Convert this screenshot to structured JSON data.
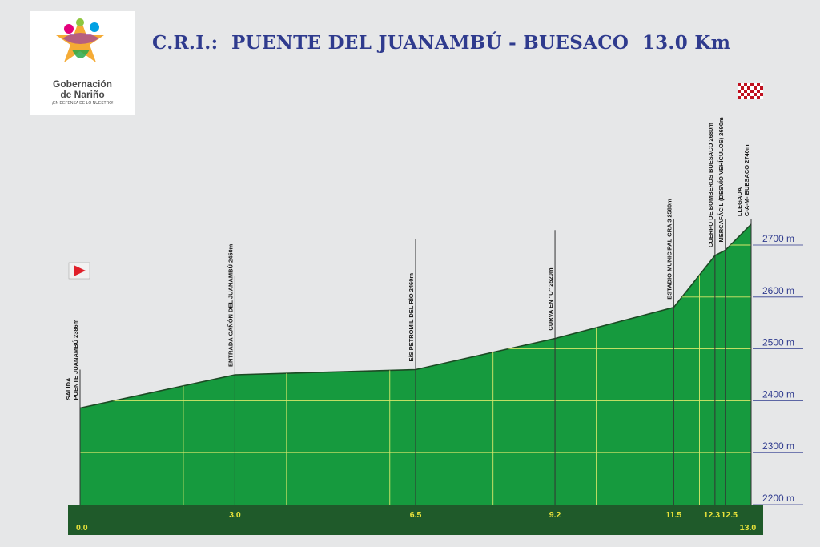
{
  "logo": {
    "line1": "Gobernación",
    "line2": "de Nariño",
    "tagline": "¡EN DEFENSA DE LO NUESTRO!"
  },
  "title": "C.R.I.:  PUENTE DEL JUANAMBÚ - BUESACO  13.0 Km",
  "colors": {
    "fill": "#169a3e",
    "profile_line": "#1c4a24",
    "x_band": "#1f5a2a",
    "grid": "#d9e86a",
    "y_axis_text": "#2f3b8e",
    "marker_line": "#333333",
    "start_flag": "#e0202a"
  },
  "chart_data": {
    "type": "area",
    "title": "C.R.I.:  PUENTE DEL JUANAMBÚ - BUESACO  13.0 Km",
    "xlabel": "",
    "ylabel": "",
    "ylim": [
      2200,
      2750
    ],
    "xlim": [
      0,
      13.0
    ],
    "yticks": [
      2200,
      2300,
      2400,
      2500,
      2600,
      2700
    ],
    "ytick_labels": [
      "2200 m",
      "2300 m",
      "2400 m",
      "2500 m",
      "2600 m",
      "2700 m"
    ],
    "xtick_labels": [
      "0.0",
      "3.0",
      "6.5",
      "9.2",
      "11.5",
      "12.3",
      "12.5",
      "13.0"
    ],
    "xticks": [
      0.0,
      3.0,
      6.5,
      9.2,
      11.5,
      12.3,
      12.5,
      13.0
    ],
    "profile": [
      {
        "x": 0.0,
        "y": 2386
      },
      {
        "x": 3.0,
        "y": 2450
      },
      {
        "x": 6.5,
        "y": 2460
      },
      {
        "x": 9.2,
        "y": 2520
      },
      {
        "x": 11.5,
        "y": 2580
      },
      {
        "x": 12.3,
        "y": 2680
      },
      {
        "x": 12.5,
        "y": 2690
      },
      {
        "x": 13.0,
        "y": 2740
      }
    ],
    "grid_x": [
      2.0,
      4.0,
      6.0,
      8.0,
      10.0,
      12.0
    ],
    "grid": true,
    "markers": [
      {
        "x": 0.0,
        "lines": [
          "SALIDA",
          "PUENTE JUANAMBÚ  2386m"
        ],
        "top_elev": 2460
      },
      {
        "x": 3.0,
        "lines": [
          "ENTRADA CAÑÓN DEL JUANAMBÚ  2450m"
        ],
        "top_elev": 2640
      },
      {
        "x": 6.5,
        "lines": [
          "E/S PETROMIL DEL RÍO  2460m"
        ],
        "top_elev": 2712
      },
      {
        "x": 9.2,
        "lines": [
          "CURVA EN \"U\"  2520m"
        ],
        "top_elev": 2729
      },
      {
        "x": 11.5,
        "lines": [
          "ESTADIO MUNICIPAL CRA 3  2580m"
        ],
        "top_elev": 2750
      },
      {
        "x": 12.3,
        "lines": [
          "CUERPO DE BOMBEROS BUESACO  2680m"
        ],
        "top_elev": 2750
      },
      {
        "x": 12.5,
        "lines": [
          "MERCAFÁCIL (DESVÍO VEHÍCULOS)  2690m"
        ],
        "top_elev": 2750
      },
      {
        "x": 13.0,
        "lines": [
          "LLEGADA",
          "C-A-M- BUESACO  2740m"
        ],
        "top_elev": 2750
      }
    ]
  }
}
